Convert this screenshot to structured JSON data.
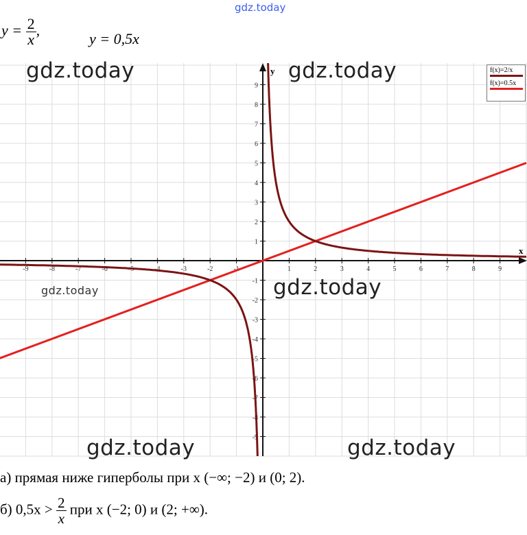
{
  "header_watermark": "gdz.today",
  "formulas": {
    "f1_lhs": "y =",
    "f1_num": "2",
    "f1_den": "x",
    "f1_sep": ",",
    "f2": "y = 0,5x"
  },
  "watermarks": [
    "gdz.today",
    "gdz.today",
    "gdz.today",
    "gdz.today",
    "gdz.today",
    "gdz.today"
  ],
  "legend": [
    {
      "label": "f(x)=2/x",
      "color": "#7a1414"
    },
    {
      "label": "f(x)=0.5x",
      "color": "#e3211f"
    }
  ],
  "answers": {
    "a": "а) прямая ниже гиперболы при x (−∞;  −2) и (0; 2).",
    "b_pre": "б) 0,5x >",
    "b_num": "2",
    "b_den": "x",
    "b_post": " при x (−2; 0) и (2;  +∞)."
  },
  "chart_data": {
    "type": "line",
    "xlabel": "x",
    "ylabel": "y",
    "xlim": [
      -10,
      10
    ],
    "ylim": [
      -10,
      10
    ],
    "grid": true,
    "x_ticks": [
      -9,
      -8,
      -7,
      -6,
      -5,
      -4,
      -3,
      -2,
      -1,
      1,
      2,
      3,
      4,
      5,
      6,
      7,
      8,
      9
    ],
    "y_ticks": [
      -9,
      -8,
      -7,
      -6,
      -5,
      -4,
      -3,
      -2,
      -1,
      1,
      2,
      3,
      4,
      5,
      6,
      7,
      8,
      9
    ],
    "legend_position": "top-right",
    "series": [
      {
        "name": "f(x)=2/x",
        "formula": "2/x",
        "color": "#7a1414"
      },
      {
        "name": "f(x)=0.5x",
        "formula": "0.5x",
        "color": "#e3211f"
      }
    ],
    "intersections": [
      [
        -2,
        -1
      ],
      [
        2,
        1
      ]
    ]
  }
}
